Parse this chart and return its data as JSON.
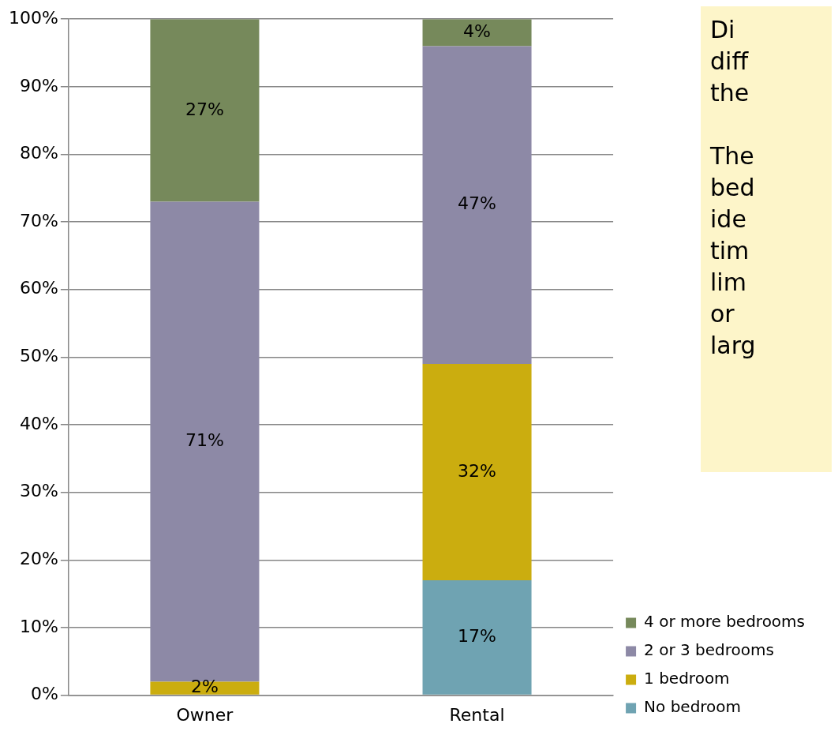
{
  "chart_data": {
    "type": "bar",
    "stacked": true,
    "categories": [
      "Owner",
      "Rental"
    ],
    "series": [
      {
        "name": "No bedroom",
        "color": "#6fa3b2",
        "values": [
          0,
          17
        ],
        "value_labels": [
          null,
          "17%"
        ]
      },
      {
        "name": "1 bedroom",
        "color": "#cbad0f",
        "values": [
          2,
          32
        ],
        "value_labels": [
          "2%",
          "32%"
        ]
      },
      {
        "name": "2 or 3 bedrooms",
        "color": "#8d89a6",
        "values": [
          71,
          47
        ],
        "value_labels": [
          "71%",
          "47%"
        ]
      },
      {
        "name": "4 or more bedrooms",
        "color": "#76895b",
        "values": [
          27,
          4
        ],
        "value_labels": [
          "27%",
          "4%"
        ]
      }
    ],
    "ylim": [
      0,
      100
    ],
    "yticks": [
      {
        "value": 0,
        "label": "0%"
      },
      {
        "value": 10,
        "label": "10%"
      },
      {
        "value": 20,
        "label": "20%"
      },
      {
        "value": 30,
        "label": "30%"
      },
      {
        "value": 40,
        "label": "40%"
      },
      {
        "value": 50,
        "label": "50%"
      },
      {
        "value": 60,
        "label": "60%"
      },
      {
        "value": 70,
        "label": "70%"
      },
      {
        "value": 80,
        "label": "80%"
      },
      {
        "value": 90,
        "label": "90%"
      },
      {
        "value": 100,
        "label": "100%"
      }
    ],
    "grid": "y",
    "legend": "right",
    "annotations": [
      "Di\ndiff\nthe",
      "The\nbed\nide\ntim\nlim\nor\nlarg"
    ]
  }
}
